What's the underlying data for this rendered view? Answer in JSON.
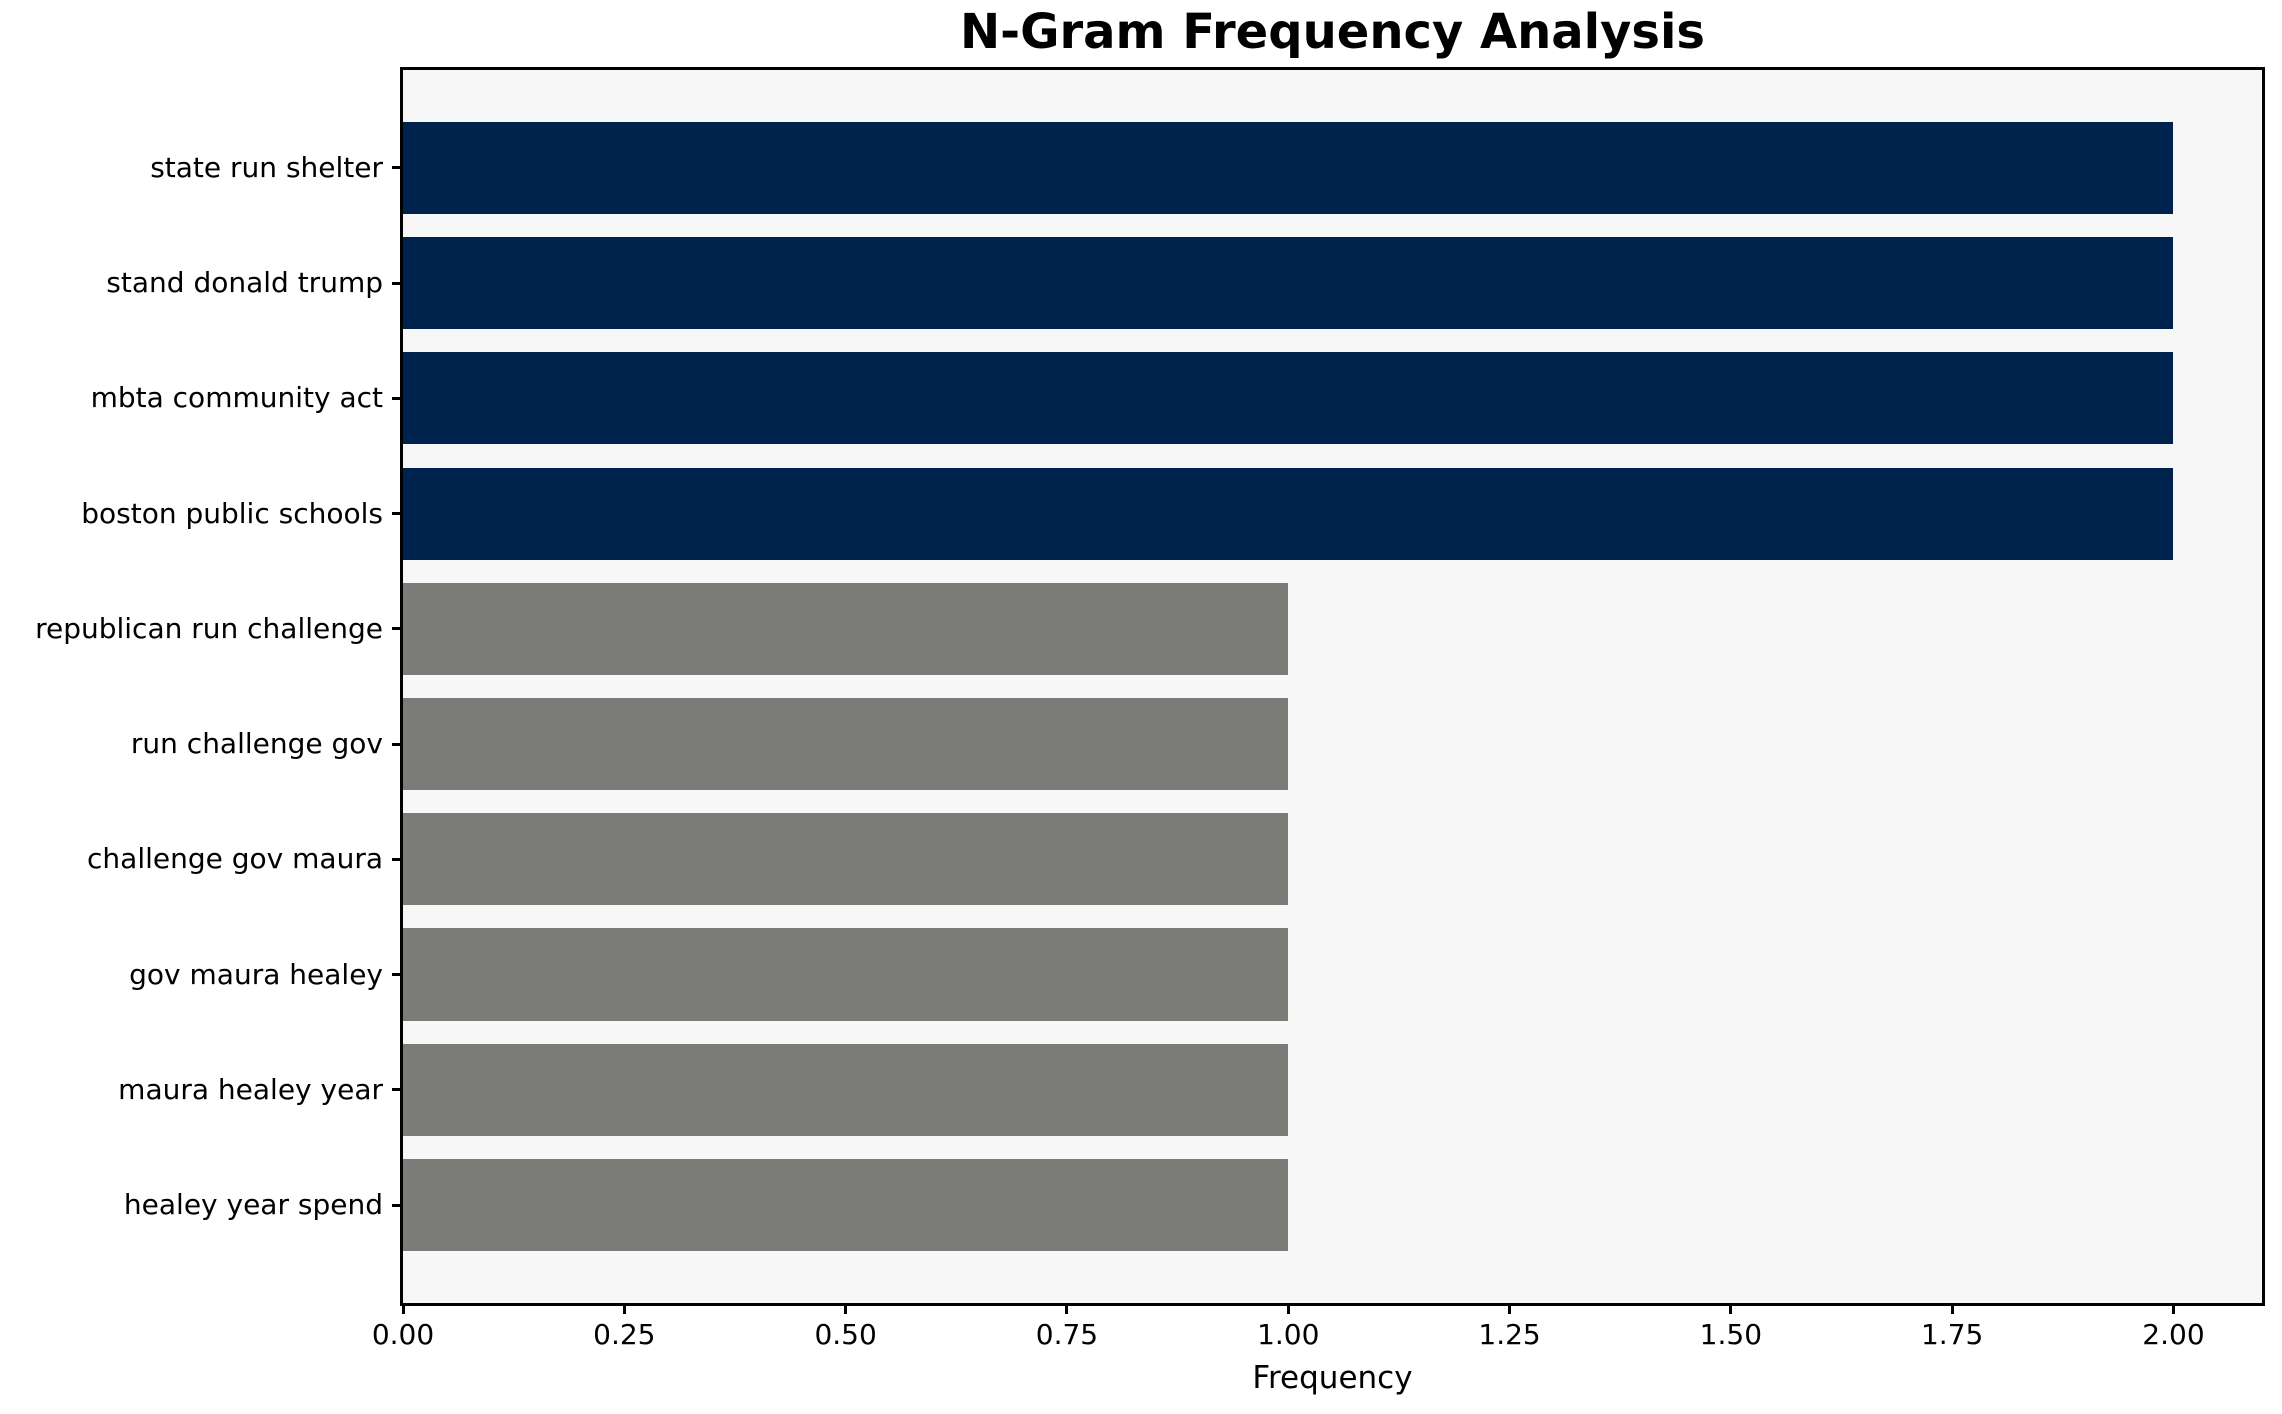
{
  "chart_data": {
    "type": "bar",
    "orientation": "horizontal",
    "title": "N-Gram Frequency Analysis",
    "xlabel": "Frequency",
    "ylabel": "",
    "categories": [
      "state run shelter",
      "stand donald trump",
      "mbta community act",
      "boston public schools",
      "republican run challenge",
      "run challenge gov",
      "challenge gov maura",
      "gov maura healey",
      "maura healey year",
      "healey year spend"
    ],
    "values": [
      2,
      2,
      2,
      2,
      1,
      1,
      1,
      1,
      1,
      1
    ],
    "bar_colors": [
      "#00234e",
      "#00234e",
      "#00234e",
      "#00234e",
      "#7b7b78",
      "#7b7b78",
      "#7b7b78",
      "#7b7b78",
      "#7b7b78",
      "#7b7b78"
    ],
    "xlim": [
      0,
      2.1
    ],
    "xticks": [
      0.0,
      0.25,
      0.5,
      0.75,
      1.0,
      1.25,
      1.5,
      1.75,
      2.0
    ],
    "xtick_labels": [
      "0.00",
      "0.25",
      "0.50",
      "0.75",
      "1.00",
      "1.25",
      "1.50",
      "1.75",
      "2.00"
    ],
    "grid": false,
    "legend": false,
    "bar_height_fraction": 0.8,
    "colors": {
      "high_frequency_bar": "#00234e",
      "low_frequency_bar": "#7b7b78",
      "plot_background": "#f7f7f8",
      "figure_background": "#ffffff",
      "axis": "#000000",
      "text": "#000000"
    }
  }
}
